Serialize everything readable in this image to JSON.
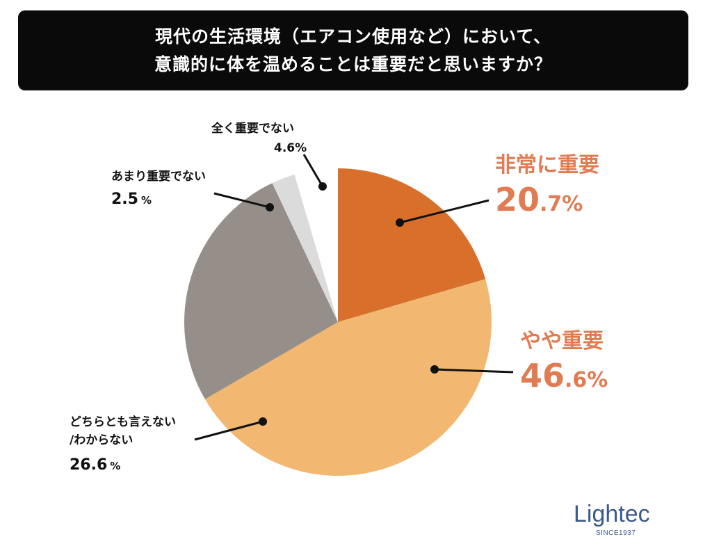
{
  "title": {
    "line1": "現代の生活環境（エアコン使用など）において、",
    "line2": "意識的に体を温めることは重要だと思いますか？"
  },
  "chart_data": {
    "type": "pie",
    "start": "12 o'clock",
    "direction": "clockwise",
    "categories": [
      "非常に重要",
      "やや重要",
      "どちらとも言えない/わからない",
      "あまり重要でない",
      "全く重要でない"
    ],
    "values": [
      20.7,
      46.6,
      26.6,
      2.5,
      4.6
    ],
    "colors": [
      "#d8702c",
      "#f2b871",
      "#958e89",
      "#dbdbdb",
      "#ffffff"
    ],
    "labels": [
      {
        "category": "非常に重要",
        "value_int": "20",
        "value_dec": ".7",
        "unit": "%"
      },
      {
        "category": "やや重要",
        "value_int": "46",
        "value_dec": ".6",
        "unit": "%"
      },
      {
        "category_line1": "どちらとも言えない",
        "category_line2": "/わからない",
        "value": "26.6",
        "unit": "%"
      },
      {
        "category": "あまり重要でない",
        "value": "2.5",
        "unit": "%"
      },
      {
        "category": "全く重要でない",
        "value": "4.6%"
      }
    ],
    "accent_label_color": "#e07b52"
  },
  "logo": {
    "text": "Lightec",
    "subtext": "SINCE1937",
    "color": "#3a5a8a"
  }
}
